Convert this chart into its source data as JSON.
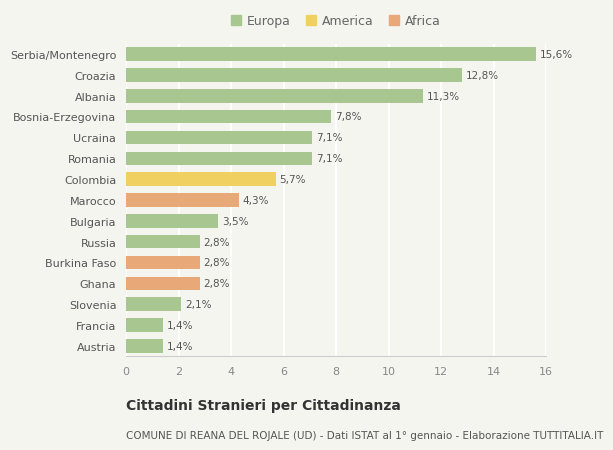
{
  "categories": [
    "Serbia/Montenegro",
    "Croazia",
    "Albania",
    "Bosnia-Erzegovina",
    "Ucraina",
    "Romania",
    "Colombia",
    "Marocco",
    "Bulgaria",
    "Russia",
    "Burkina Faso",
    "Ghana",
    "Slovenia",
    "Francia",
    "Austria"
  ],
  "values": [
    15.6,
    12.8,
    11.3,
    7.8,
    7.1,
    7.1,
    5.7,
    4.3,
    3.5,
    2.8,
    2.8,
    2.8,
    2.1,
    1.4,
    1.4
  ],
  "labels": [
    "15,6%",
    "12,8%",
    "11,3%",
    "7,8%",
    "7,1%",
    "7,1%",
    "5,7%",
    "4,3%",
    "3,5%",
    "2,8%",
    "2,8%",
    "2,8%",
    "2,1%",
    "1,4%",
    "1,4%"
  ],
  "continents": [
    "Europa",
    "Europa",
    "Europa",
    "Europa",
    "Europa",
    "Europa",
    "America",
    "Africa",
    "Europa",
    "Europa",
    "Africa",
    "Africa",
    "Europa",
    "Europa",
    "Europa"
  ],
  "colors": {
    "Europa": "#a8c68f",
    "America": "#f0d060",
    "Africa": "#e8a878"
  },
  "legend_items": [
    "Europa",
    "America",
    "Africa"
  ],
  "xlim": [
    0,
    16
  ],
  "xticks": [
    0,
    2,
    4,
    6,
    8,
    10,
    12,
    14,
    16
  ],
  "title": "Cittadini Stranieri per Cittadinanza",
  "subtitle": "COMUNE DI REANA DEL ROJALE (UD) - Dati ISTAT al 1° gennaio - Elaborazione TUTTITALIA.IT",
  "bg_color": "#f5f5f0",
  "grid_color": "#ffffff",
  "bar_height": 0.65,
  "title_fontsize": 10,
  "subtitle_fontsize": 7.5,
  "label_fontsize": 7.5,
  "tick_fontsize": 8
}
